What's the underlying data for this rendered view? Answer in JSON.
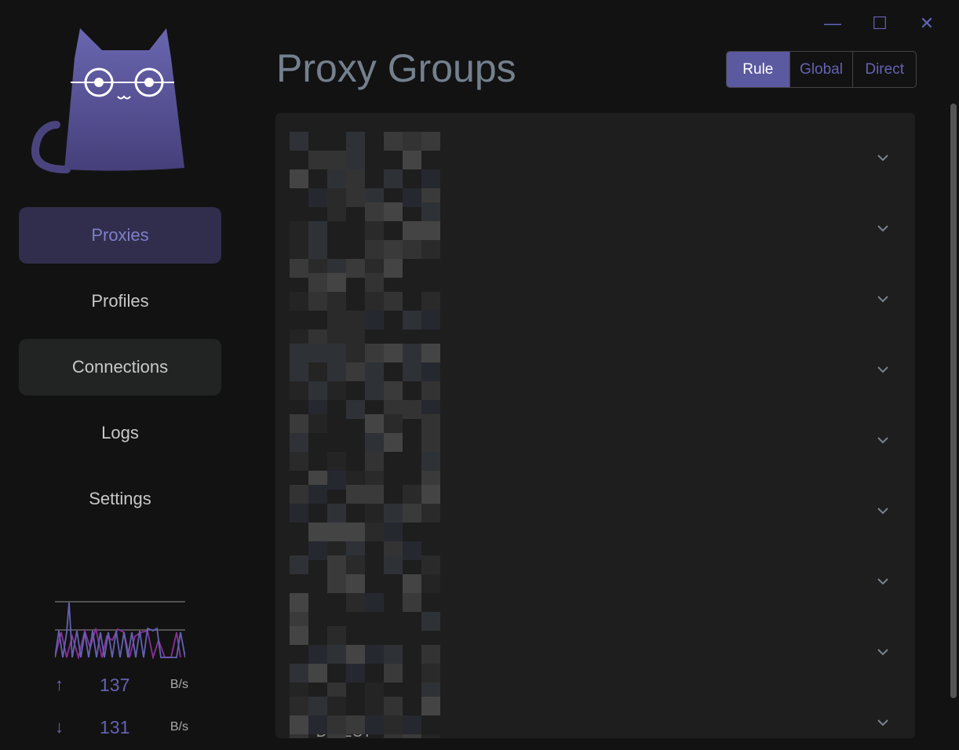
{
  "window": {
    "minimize": "minimize",
    "maximize": "maximize",
    "close": "close"
  },
  "nav": [
    {
      "label": "Proxies"
    },
    {
      "label": "Profiles"
    },
    {
      "label": "Connections"
    },
    {
      "label": "Logs"
    },
    {
      "label": "Settings"
    }
  ],
  "traffic": {
    "up_value": "137",
    "up_unit": "B/s",
    "down_value": "131",
    "down_unit": "B/s",
    "colors": {
      "up": "#6462b4",
      "down": "#8a2f9c"
    }
  },
  "header": {
    "title": "Proxy Groups"
  },
  "modes": [
    {
      "label": "Rule",
      "active": true
    },
    {
      "label": "Global"
    },
    {
      "label": "Direct"
    }
  ],
  "groups_count_visible": 9,
  "footer_item": {
    "label": "DIRECT"
  },
  "colors": {
    "accent": "#5b59a0",
    "background": "#121212",
    "panel": "#1e1e1e"
  }
}
